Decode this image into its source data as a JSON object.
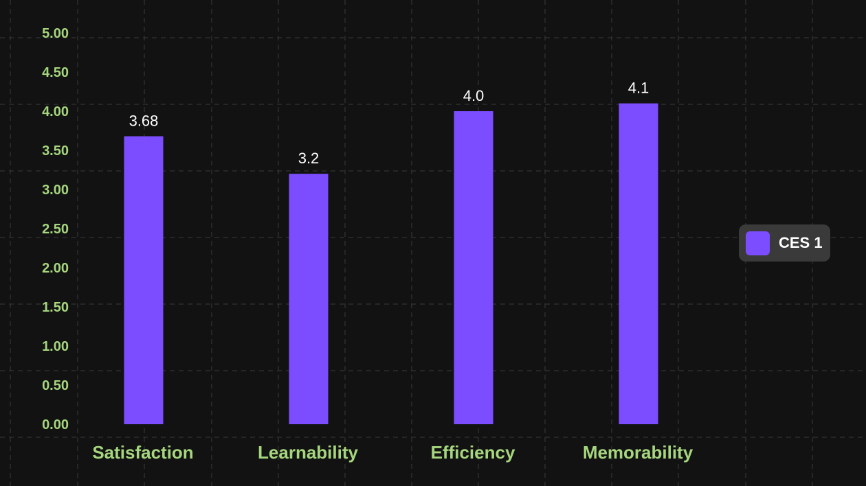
{
  "chart_data": {
    "type": "bar",
    "categories": [
      "Satisfaction",
      "Learnability",
      "Efficiency",
      "Memorability"
    ],
    "series": [
      {
        "name": "CES 1",
        "values": [
          3.68,
          3.2,
          4.0,
          4.1
        ],
        "value_labels": [
          "3.68",
          "3.2",
          "4.0",
          "4.1"
        ]
      }
    ],
    "y_ticks": [
      "0.00",
      "0.50",
      "1.00",
      "1.50",
      "2.00",
      "2.50",
      "3.00",
      "3.50",
      "4.00",
      "4.50",
      "5.00"
    ],
    "ylim": [
      0,
      5
    ],
    "grid": true,
    "legend_position": "right",
    "colors": {
      "background": "#121212",
      "bar": "#7c4dff",
      "grid": "#3a3a3a",
      "axis_text": "#a6d67e",
      "value_text": "#ffffff",
      "legend_bg": "#3a3a3a",
      "legend_text": "#ffffff"
    }
  }
}
